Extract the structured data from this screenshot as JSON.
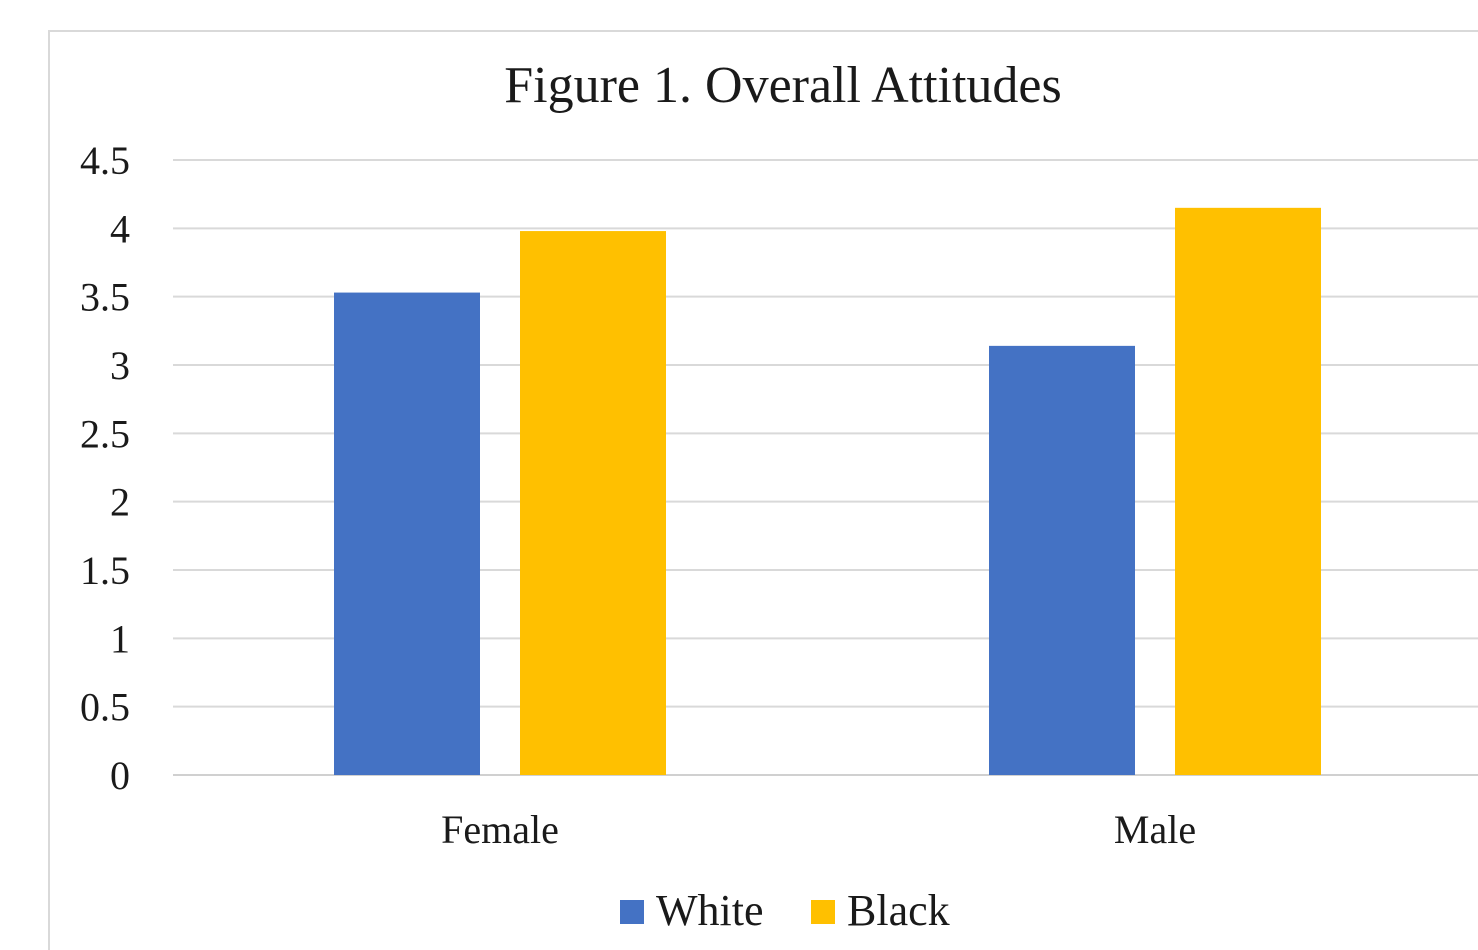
{
  "chart_data": {
    "type": "bar",
    "title": "Figure 1. Overall Attitudes",
    "xlabel": "",
    "ylabel": "",
    "categories": [
      "Female",
      "Male"
    ],
    "series": [
      {
        "name": "White",
        "values": [
          3.53,
          3.14
        ],
        "color": "#4472c4"
      },
      {
        "name": "Black",
        "values": [
          3.98,
          4.15
        ],
        "color": "#ffc000"
      }
    ],
    "ylim": [
      0,
      4.5
    ],
    "yticks": [
      "0",
      "0.5",
      "1",
      "1.5",
      "2",
      "2.5",
      "3",
      "3.5",
      "4",
      "4.5"
    ],
    "grid": true,
    "legend_position": "bottom"
  }
}
